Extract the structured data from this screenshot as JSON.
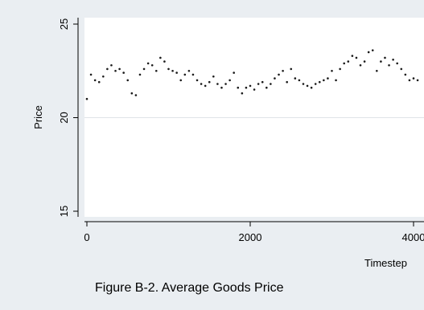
{
  "caption": "Figure B-2. Average Goods Price",
  "chart_data": {
    "type": "scatter",
    "xlabel": "Timestep",
    "ylabel": "Price",
    "xlim": [
      0,
      4000
    ],
    "ylim": [
      15,
      25
    ],
    "x_ticks": [
      0,
      2000,
      4000
    ],
    "x_tick_labels": [
      "0",
      "2000",
      "4000"
    ],
    "y_ticks": [
      15,
      20,
      25
    ],
    "y_tick_labels": [
      "15",
      "20",
      "25"
    ],
    "grid": "horizontal",
    "colors": {
      "plot_bg": "#ffffff",
      "page_bg": "#eaeef2",
      "marker": "#1a1a1a",
      "grid": "#dfe4e8"
    },
    "series": [
      {
        "x": [
          0,
          50,
          100,
          150,
          200,
          250,
          300,
          350,
          400,
          450,
          500,
          550,
          600,
          650,
          700,
          750,
          800,
          850,
          900,
          950,
          1000,
          1050,
          1100,
          1150,
          1200,
          1250,
          1300,
          1350,
          1400,
          1450,
          1500,
          1550,
          1600,
          1650,
          1700,
          1750,
          1800,
          1850,
          1900,
          1950,
          2000,
          2050,
          2100,
          2150,
          2200,
          2250,
          2300,
          2350,
          2400,
          2450,
          2500,
          2550,
          2600,
          2650,
          2700,
          2750,
          2800,
          2850,
          2900,
          2950,
          3000,
          3050,
          3100,
          3150,
          3200,
          3250,
          3300,
          3350,
          3400,
          3450,
          3500,
          3550,
          3600,
          3650,
          3700,
          3750,
          3800,
          3850,
          3900,
          3950,
          4000,
          4050
        ],
        "y": [
          21.0,
          22.3,
          22.0,
          21.9,
          22.2,
          22.6,
          22.8,
          22.5,
          22.6,
          22.4,
          22.0,
          21.3,
          21.2,
          22.3,
          22.6,
          22.9,
          22.8,
          22.5,
          23.2,
          23.0,
          22.6,
          22.5,
          22.4,
          22.0,
          22.3,
          22.5,
          22.3,
          22.0,
          21.8,
          21.7,
          21.9,
          22.2,
          21.8,
          21.6,
          21.8,
          22.0,
          22.4,
          21.6,
          21.3,
          21.6,
          21.7,
          21.5,
          21.8,
          21.9,
          21.6,
          21.8,
          22.1,
          22.3,
          22.5,
          21.9,
          22.6,
          22.1,
          22.0,
          21.8,
          21.7,
          21.6,
          21.8,
          21.9,
          22.0,
          22.1,
          22.5,
          22.0,
          22.6,
          22.9,
          23.0,
          23.3,
          23.2,
          22.8,
          23.0,
          23.5,
          23.6,
          22.5,
          23.0,
          23.2,
          22.8,
          23.1,
          22.9,
          22.6,
          22.3,
          22.0,
          22.1,
          22.0
        ]
      }
    ]
  }
}
